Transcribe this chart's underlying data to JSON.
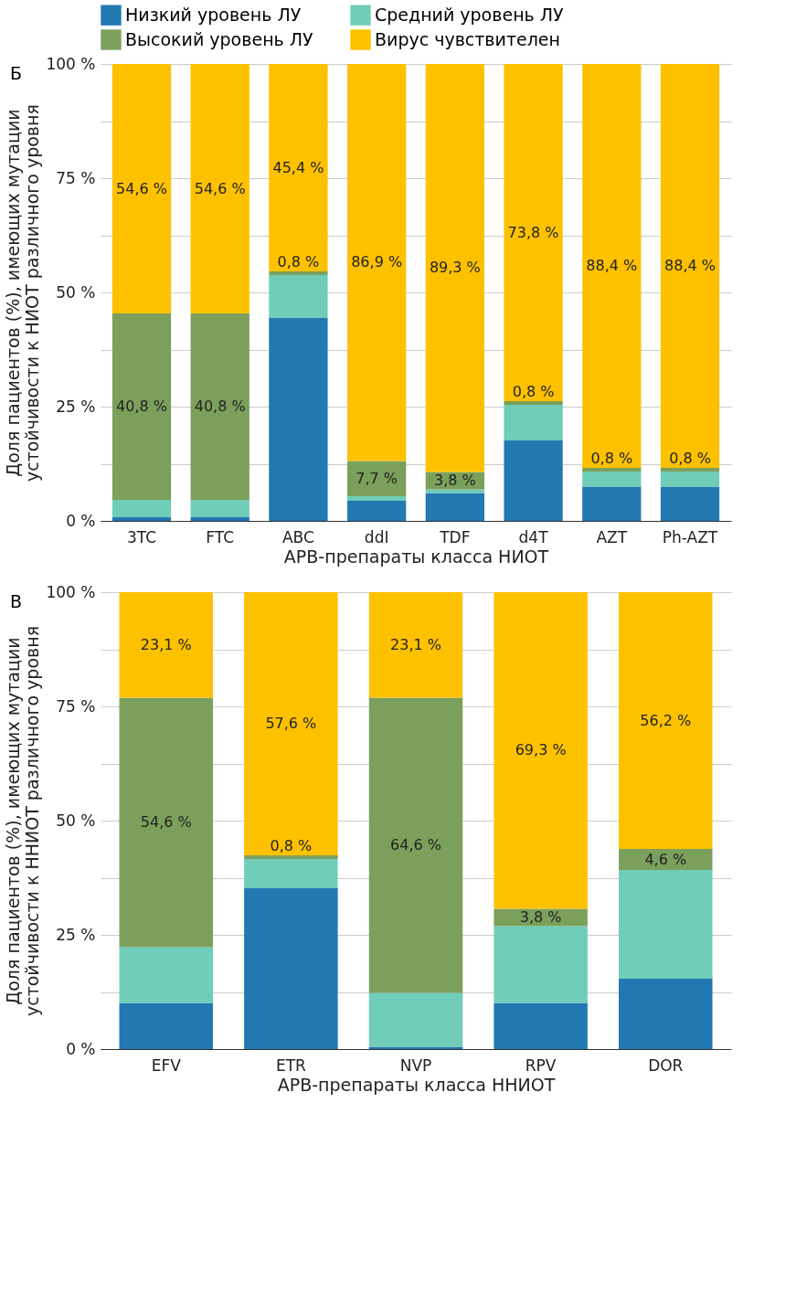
{
  "chart_data": [
    {
      "type": "bar",
      "title": "Б",
      "stacked": true,
      "xlabel": "АРВ-препараты класса НИОТ",
      "ylabel": "Доля пациентов (%), имеющих мутации устойчивости к НИОТ различного уровня",
      "categories": [
        "3TC",
        "FTC",
        "ABC",
        "ddI",
        "TDF",
        "d4T",
        "AZT",
        "Ph-AZT"
      ],
      "series": [
        {
          "name": "Низкий уровень ЛУ",
          "color": "#2278b0",
          "values": [
            0.8,
            0.8,
            44.5,
            4.4,
            6.1,
            17.6,
            7.5,
            7.5
          ]
        },
        {
          "name": "Средний уровень ЛУ",
          "color": "#6fcdb8",
          "values": [
            3.8,
            3.8,
            9.3,
            1.0,
            0.8,
            7.8,
            3.3,
            3.3
          ]
        },
        {
          "name": "Высокий уровень ЛУ",
          "color": "#7ba05b",
          "values": [
            40.8,
            40.8,
            0.8,
            7.7,
            3.8,
            0.8,
            0.8,
            0.8
          ],
          "value_labels": [
            "40,8 %",
            "40,8 %",
            "0,8 %",
            "7,7 %",
            "3,8 %",
            "0,8 %",
            "0,8 %",
            "0,8 %"
          ]
        },
        {
          "name": "Вирус чувствителен",
          "color": "#fdc100",
          "values": [
            54.6,
            54.6,
            45.4,
            86.9,
            89.3,
            73.8,
            88.4,
            88.4
          ],
          "value_labels": [
            "54,6 %",
            "54,6 %",
            "45,4 %",
            "86,9 %",
            "89,3 %",
            "73,8 %",
            "88,4 %",
            "88,4 %"
          ]
        }
      ],
      "ylim": [
        0,
        100
      ],
      "yticks": [
        {
          "value": 0,
          "label": "0 %"
        },
        {
          "value": 12.5,
          "label": null
        },
        {
          "value": 25,
          "label": "25 %"
        },
        {
          "value": 37.5,
          "label": null
        },
        {
          "value": 50,
          "label": "50 %"
        },
        {
          "value": 62.5,
          "label": null
        },
        {
          "value": 75,
          "label": "75 %"
        },
        {
          "value": 87.5,
          "label": null
        },
        {
          "value": 100,
          "label": "100 %"
        }
      ],
      "grid": "y",
      "legend": "top"
    },
    {
      "type": "bar",
      "title": "В",
      "stacked": true,
      "xlabel": "АРВ-препараты класса ННИОТ",
      "ylabel": "Доля пациентов (%), имеющих мутации устойчивости к ННИОТ различного уровня",
      "categories": [
        "EFV",
        "ETR",
        "NVP",
        "RPV",
        "DOR"
      ],
      "series": [
        {
          "name": "Низкий уровень ЛУ",
          "color": "#2278b0",
          "values": [
            10.1,
            35.3,
            0.5,
            10.1,
            15.4
          ]
        },
        {
          "name": "Средний уровень ЛУ",
          "color": "#6fcdb8",
          "values": [
            12.2,
            6.3,
            11.8,
            16.8,
            23.8
          ]
        },
        {
          "name": "Высокий уровень ЛУ",
          "color": "#7ba05b",
          "values": [
            54.6,
            0.8,
            64.6,
            3.8,
            4.6
          ],
          "value_labels": [
            "54,6 %",
            "0,8 %",
            "64,6 %",
            "3,8 %",
            "4,6 %"
          ]
        },
        {
          "name": "Вирус чувствителен",
          "color": "#fdc100",
          "values": [
            23.1,
            57.6,
            23.1,
            69.3,
            56.2
          ],
          "value_labels": [
            "23,1 %",
            "57,6 %",
            "23,1 %",
            "69,3 %",
            "56,2 %"
          ]
        }
      ],
      "ylim": [
        0,
        100
      ],
      "yticks": [
        {
          "value": 0,
          "label": "0 %"
        },
        {
          "value": 12.5,
          "label": null
        },
        {
          "value": 25,
          "label": "25 %"
        },
        {
          "value": 37.5,
          "label": null
        },
        {
          "value": 50,
          "label": "50 %"
        },
        {
          "value": 62.5,
          "label": null
        },
        {
          "value": 75,
          "label": "75 %"
        },
        {
          "value": 87.5,
          "label": null
        },
        {
          "value": 100,
          "label": "100 %"
        }
      ],
      "grid": "y",
      "legend": "top"
    }
  ]
}
